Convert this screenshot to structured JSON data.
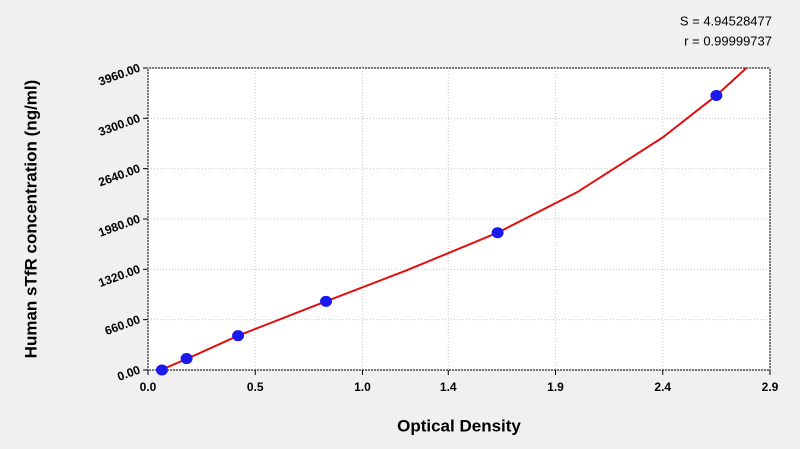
{
  "chart_data": {
    "type": "scatter",
    "x_label": "Optical Density",
    "y_label": "Human sTfR concentration (ng/ml)",
    "annotations": [
      "S = 4.94528477",
      "r = 0.99999737"
    ],
    "xlim": [
      0,
      2.9
    ],
    "xticks": [
      {
        "value": 0,
        "label": "0.0"
      },
      0.5,
      {
        "value": 1,
        "label": "1.0"
      },
      1.4,
      1.9,
      2.4,
      2.9
    ],
    "ylim": [
      0,
      3960
    ],
    "yticks": [
      {
        "value": 0,
        "label": "0.00"
      },
      {
        "value": 660,
        "label": "660.00"
      },
      {
        "value": 1320,
        "label": "1320.00"
      },
      {
        "value": 1980,
        "label": "1980.00"
      },
      {
        "value": 2640,
        "label": "2640.00"
      },
      {
        "value": 3300,
        "label": "3300.00"
      },
      {
        "value": 3960,
        "label": "3960.00"
      }
    ],
    "grid": true,
    "series": [
      {
        "type": "scatter",
        "color": "#1a1aee",
        "x": [
          0.065,
          0.18,
          0.42,
          0.83,
          1.63,
          2.65
        ],
        "values": [
          0,
          150,
          450,
          900,
          1800,
          3600
        ]
      },
      {
        "type": "line",
        "color": "#e01010",
        "x": [
          0.06,
          0.2,
          0.42,
          0.83,
          1.2,
          1.63,
          2.0,
          2.4,
          2.65,
          2.79
        ],
        "values": [
          0,
          170,
          450,
          900,
          1300,
          1800,
          2330,
          3050,
          3600,
          3960
        ]
      }
    ]
  }
}
